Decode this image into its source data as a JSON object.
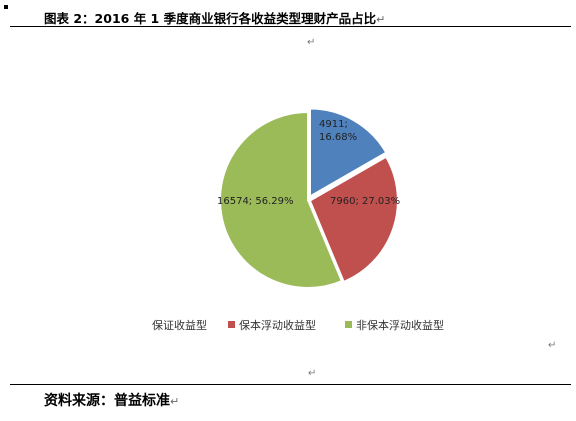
{
  "figure": {
    "title": "图表 2：2016 年 1 季度商业银行各收益类型理财产品占比",
    "source": "资料来源：普益标准",
    "paragraph_mark": "↵"
  },
  "chart_data": {
    "type": "pie",
    "title": "",
    "legend_position": "bottom",
    "slices": [
      {
        "name": "保证收益型",
        "value": 4911,
        "percent": "16.68%",
        "label": "4911;\n16.68%",
        "color": "#4F81BD"
      },
      {
        "name": "保本浮动收益型",
        "value": 7960,
        "percent": "27.03%",
        "label": "7960; 27.03%",
        "color": "#C0504D"
      },
      {
        "name": "非保本浮动收益型",
        "value": 16574,
        "percent": "56.29%",
        "label": "16574; 56.29%",
        "color": "#9BBB59"
      }
    ]
  }
}
